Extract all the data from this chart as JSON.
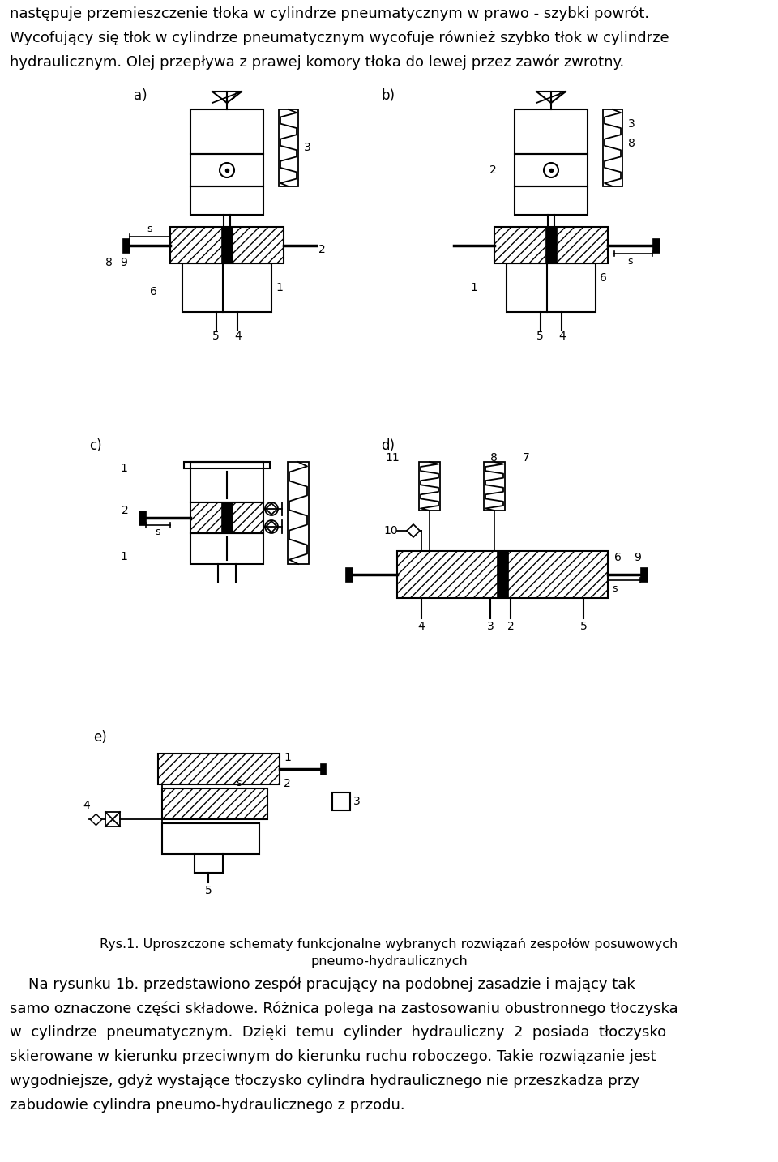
{
  "page_width": 9.6,
  "page_height": 14.34,
  "dpi": 100,
  "bg_color": "#ffffff",
  "top_text_lines": [
    "następuje przemieszczenie tłoka w cylindrze pneumatycznym w prawo - szybki powrót.",
    "Wycofujący się tłok w cylindrze pneumatycznym wycofuje również szybko tłok w cylindrze",
    "hydraulicznym. Olej przepływa z prawej komory tłoka do lewej przez zawór zwrotny."
  ],
  "caption_line1": "Rys.1. Uproszczone schematy funkcjonalne wybranych rozwiązań zespołów posuwowych",
  "caption_line2": "pneumo-hydraulicznych",
  "bottom_text_lines": [
    "    Na rysunku 1b. przedstawiono zespół pracujący na podobnej zasadzie i mający tak",
    "samo oznaczone części składowe. Różnica polega na zastosowaniu obustronnego tłoczyska",
    "w  cylindrze  pneumatycznym.  Dzięki  temu  cylinder  hydrauliczny  2  posiada  tłoczysko",
    "skierowane w kierunku przeciwnym do kierunku ruchu roboczego. Takie rozwiązanie jest",
    "wygodniejsze, gdyż wystające tłoczysko cylindra hydraulicznego nie przeszkadza przy",
    "zabudowie cylindra pneumo-hydraulicznego z przodu."
  ]
}
